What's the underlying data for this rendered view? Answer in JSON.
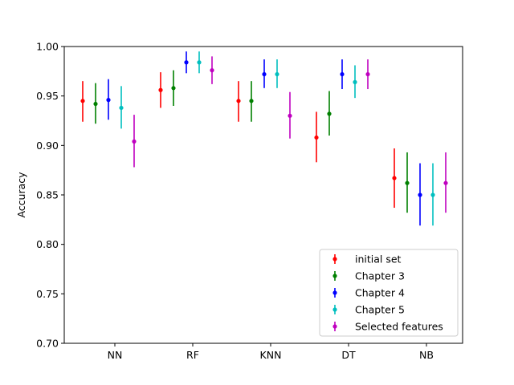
{
  "chart_data": {
    "type": "errorbar",
    "ylabel": "Accuracy",
    "xlabel": "",
    "ylim": [
      0.7,
      1.0
    ],
    "yticks": [
      "0.70",
      "0.75",
      "0.80",
      "0.85",
      "0.90",
      "0.95",
      "1.00"
    ],
    "categories": [
      "NN",
      "RF",
      "KNN",
      "DT",
      "NB"
    ],
    "legend_position": "lower-right",
    "grid": false,
    "series": [
      {
        "name": "initial set",
        "color": "#ff0000",
        "values": [
          0.945,
          0.956,
          0.945,
          0.908,
          0.867
        ],
        "low": [
          0.924,
          0.938,
          0.924,
          0.883,
          0.837
        ],
        "high": [
          0.965,
          0.974,
          0.965,
          0.934,
          0.897
        ]
      },
      {
        "name": "Chapter 3",
        "color": "#008000",
        "values": [
          0.942,
          0.958,
          0.945,
          0.932,
          0.862
        ],
        "low": [
          0.922,
          0.94,
          0.924,
          0.91,
          0.832
        ],
        "high": [
          0.963,
          0.976,
          0.965,
          0.955,
          0.893
        ]
      },
      {
        "name": "Chapter 4",
        "color": "#0000ff",
        "values": [
          0.946,
          0.984,
          0.972,
          0.972,
          0.85
        ],
        "low": [
          0.926,
          0.973,
          0.958,
          0.957,
          0.819
        ],
        "high": [
          0.967,
          0.995,
          0.987,
          0.987,
          0.882
        ]
      },
      {
        "name": "Chapter 5",
        "color": "#00bfbf",
        "values": [
          0.938,
          0.984,
          0.972,
          0.964,
          0.85
        ],
        "low": [
          0.917,
          0.973,
          0.958,
          0.948,
          0.819
        ],
        "high": [
          0.96,
          0.995,
          0.987,
          0.981,
          0.882
        ]
      },
      {
        "name": "Selected features",
        "color": "#bf00bf",
        "values": [
          0.904,
          0.976,
          0.93,
          0.972,
          0.862
        ],
        "low": [
          0.878,
          0.962,
          0.907,
          0.957,
          0.832
        ],
        "high": [
          0.931,
          0.99,
          0.954,
          0.987,
          0.893
        ]
      }
    ]
  }
}
